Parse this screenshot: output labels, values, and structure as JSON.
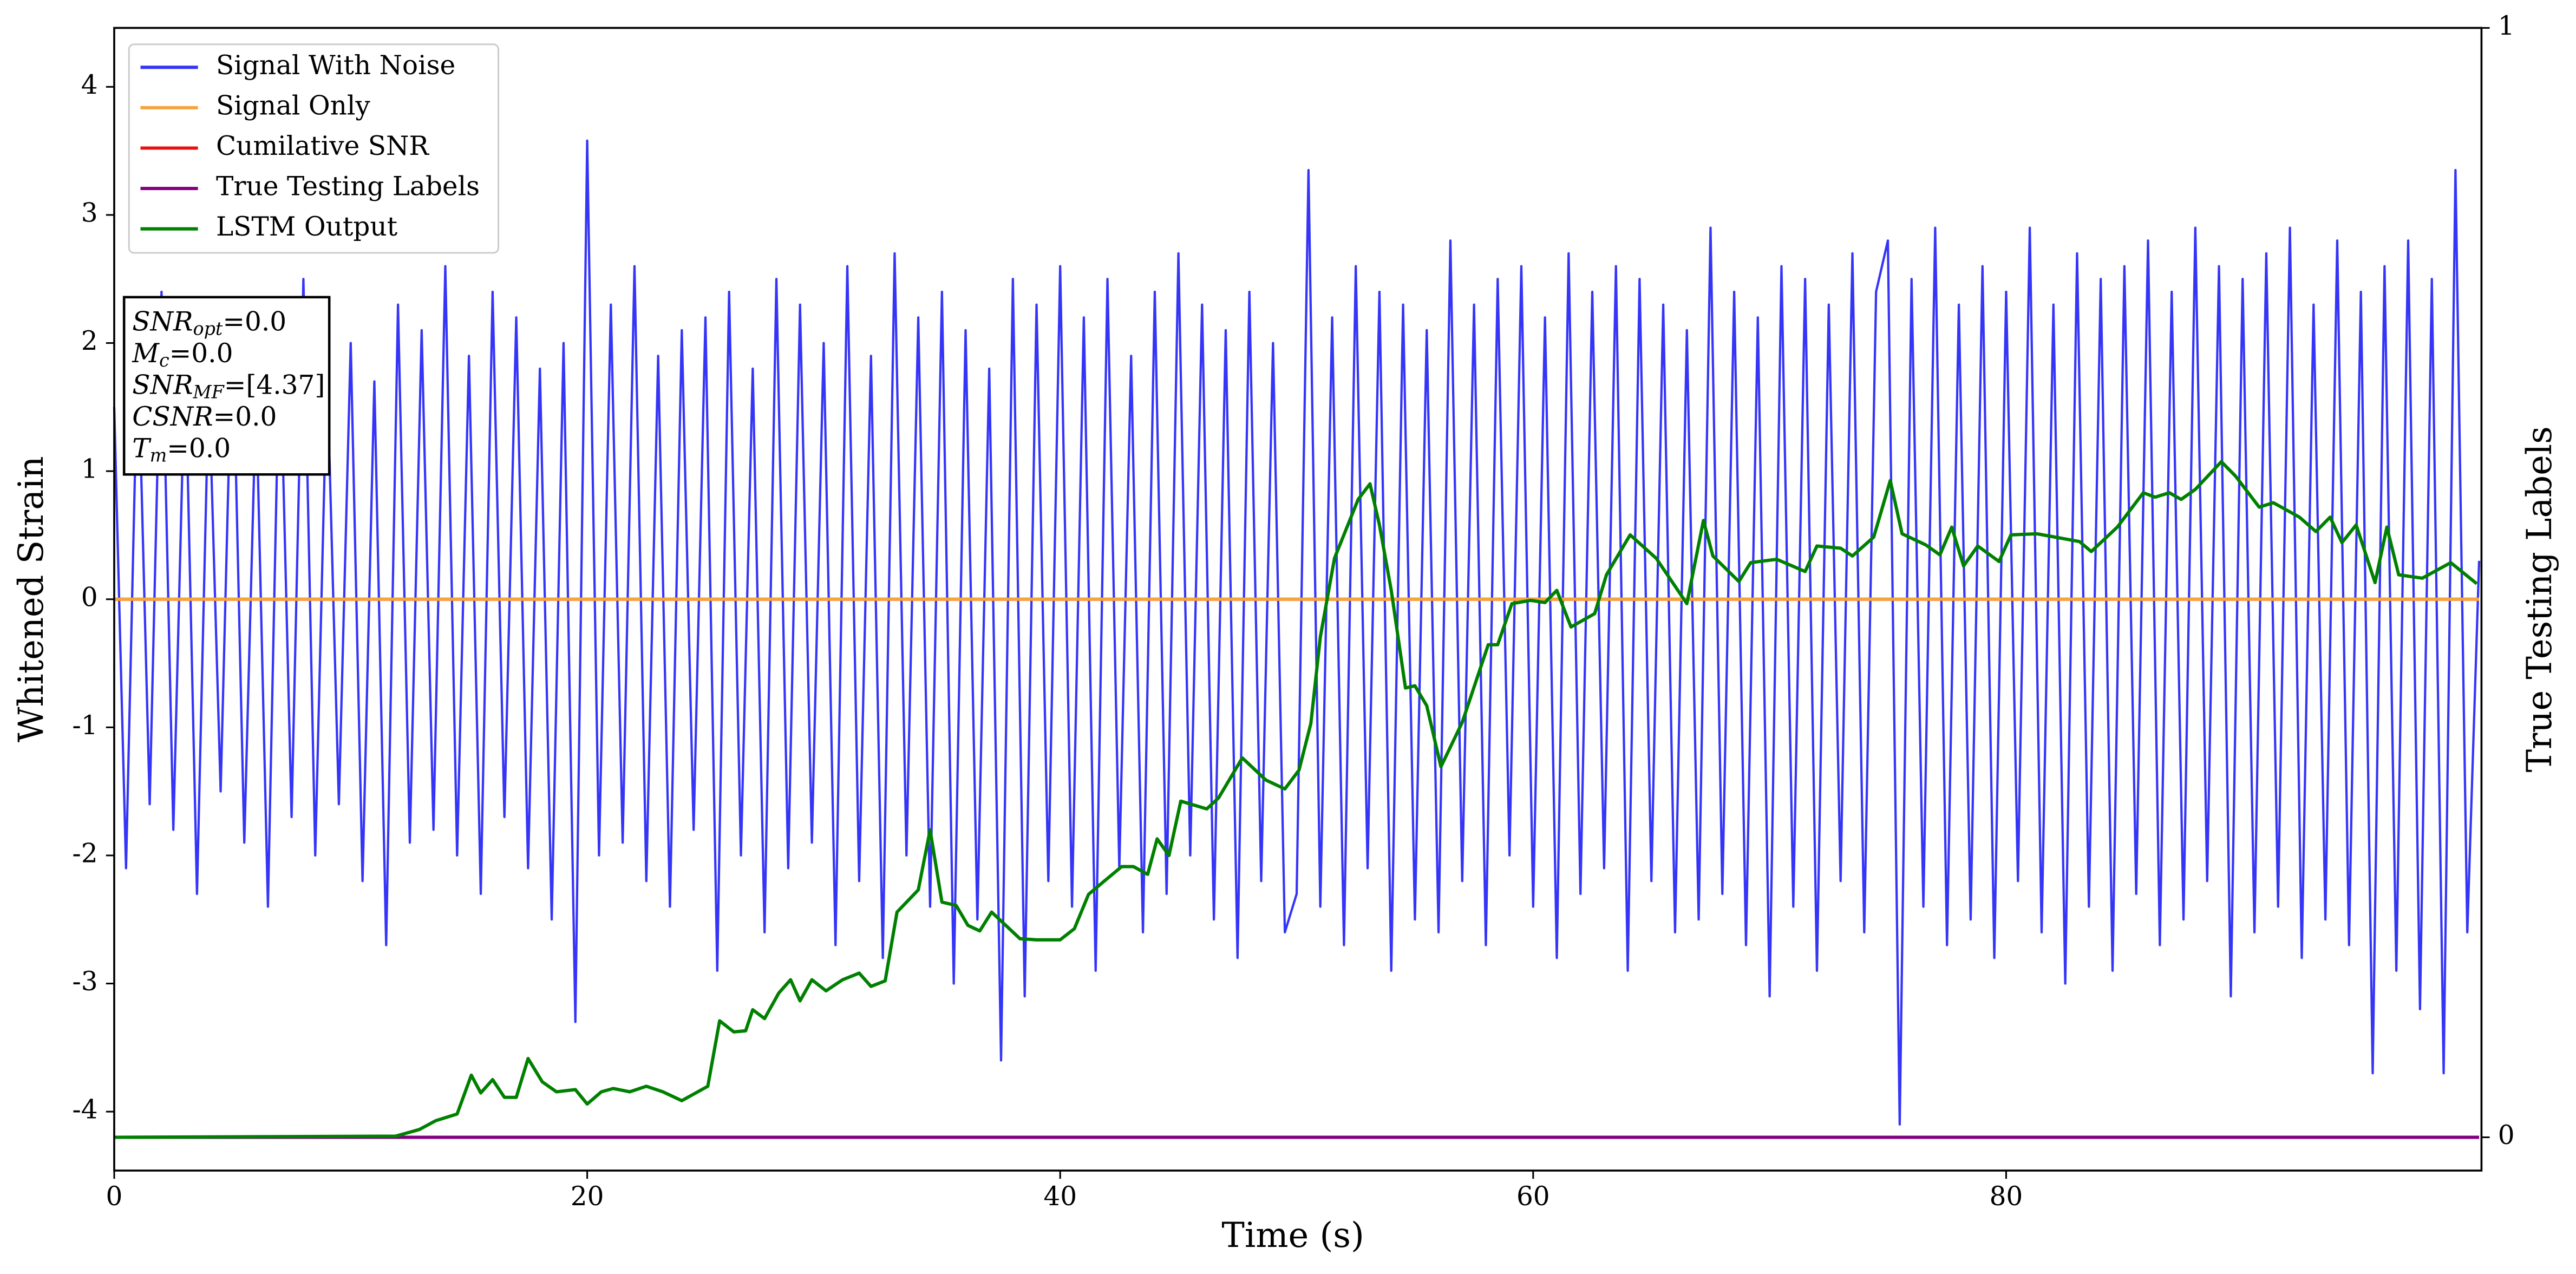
{
  "chart_data": {
    "type": "line",
    "xlabel": "Time (s)",
    "ylabel": "Whitened Strain",
    "y2label": "True Testing Labels",
    "xlim": [
      0,
      100.1
    ],
    "xticks": [
      0,
      20,
      40,
      60,
      80
    ],
    "ylim": [
      -4.46,
      4.46
    ],
    "yticks": [
      -4,
      -3,
      -2,
      -1,
      0,
      1,
      2,
      3,
      4
    ],
    "y2lim": [
      -0.03,
      1.0
    ],
    "y2ticks": [
      0,
      1
    ],
    "legend": "upper left",
    "annotations": [
      {
        "label": "SNR",
        "sub": "opt",
        "text": "=0.0"
      },
      {
        "label": "M",
        "sub": "c",
        "text": "=0.0"
      },
      {
        "label": "SNR",
        "sub": "MF",
        "text": "=[4.37]"
      },
      {
        "label": "CSNR",
        "text": "=0.0"
      },
      {
        "label": "T",
        "sub": "m",
        "text": "=0.0"
      }
    ],
    "series": [
      {
        "name": "Signal With Noise",
        "color": "#3535f8",
        "axis": "y",
        "x": [
          0,
          0.5,
          1,
          1.5,
          2,
          2.5,
          3,
          3.5,
          4,
          4.5,
          5,
          5.5,
          6,
          6.5,
          7,
          7.5,
          8,
          8.5,
          9,
          9.5,
          10,
          10.5,
          11,
          11.5,
          12,
          12.5,
          13,
          13.5,
          14,
          14.5,
          15,
          15.5,
          16,
          16.5,
          17,
          17.5,
          18,
          18.5,
          19,
          19.5,
          20,
          20.5,
          21,
          21.5,
          22,
          22.5,
          23,
          23.5,
          24,
          24.5,
          25,
          25.5,
          26,
          26.5,
          27,
          27.5,
          28,
          28.5,
          29,
          29.5,
          30,
          30.5,
          31,
          31.5,
          32,
          32.5,
          33,
          33.5,
          34,
          34.5,
          35,
          35.5,
          36,
          36.5,
          37,
          37.5,
          38,
          38.5,
          39,
          39.5,
          40,
          40.5,
          41,
          41.5,
          42,
          42.5,
          43,
          43.5,
          44,
          44.5,
          45,
          45.5,
          46,
          46.5,
          47,
          47.5,
          48,
          48.5,
          49,
          49.5,
          50,
          50.5,
          51,
          51.5,
          52,
          52.5,
          53,
          53.5,
          54,
          54.5,
          55,
          55.5,
          56,
          56.5,
          57,
          57.5,
          58,
          58.5,
          59,
          59.5,
          60,
          60.5,
          61,
          61.5,
          62,
          62.5,
          63,
          63.5,
          64,
          64.5,
          65,
          65.5,
          66,
          66.5,
          67,
          67.5,
          68,
          68.5,
          69,
          69.5,
          70,
          70.5,
          71,
          71.5,
          72,
          72.5,
          73,
          73.5,
          74,
          74.5,
          75,
          75.5,
          76,
          76.5,
          77,
          77.5,
          78,
          78.5,
          79,
          79.5,
          80,
          80.5,
          81,
          81.5,
          82,
          82.5,
          83,
          83.5,
          84,
          84.5,
          85,
          85.5,
          86,
          86.5,
          87,
          87.5,
          88,
          88.5,
          89,
          89.5,
          90,
          90.5,
          91,
          91.5,
          92,
          92.5,
          93,
          93.5,
          94,
          94.5,
          95,
          95.5,
          96,
          96.5,
          97,
          97.5,
          98,
          98.5,
          99,
          99.5,
          100
        ],
        "values": [
          1.5,
          -2.1,
          2.0,
          -1.6,
          2.4,
          -1.8,
          1.9,
          -2.3,
          1.7,
          -1.5,
          2.2,
          -1.9,
          1.6,
          -2.4,
          2.1,
          -1.7,
          2.5,
          -2.0,
          1.8,
          -1.6,
          2.0,
          -2.2,
          1.7,
          -2.7,
          2.3,
          -1.9,
          2.1,
          -1.8,
          2.6,
          -2.0,
          1.9,
          -2.3,
          2.4,
          -1.7,
          2.2,
          -2.1,
          1.8,
          -2.5,
          2.0,
          -3.3,
          3.58,
          -2.0,
          2.3,
          -1.9,
          2.6,
          -2.2,
          1.9,
          -2.4,
          2.1,
          -1.8,
          2.2,
          -2.9,
          2.4,
          -2.0,
          1.8,
          -2.6,
          2.5,
          -2.1,
          2.3,
          -1.9,
          2.0,
          -2.7,
          2.6,
          -2.2,
          1.9,
          -2.8,
          2.7,
          -2.0,
          2.2,
          -2.4,
          2.4,
          -3.0,
          2.1,
          -2.5,
          1.8,
          -3.6,
          2.5,
          -3.1,
          2.3,
          -2.2,
          2.6,
          -2.4,
          2.2,
          -2.9,
          2.5,
          -2.1,
          1.9,
          -2.6,
          2.4,
          -2.3,
          2.7,
          -2.0,
          2.3,
          -2.5,
          2.1,
          -2.8,
          2.4,
          -2.2,
          2.0,
          -2.6,
          -2.3,
          3.35,
          -2.4,
          2.2,
          -2.7,
          2.6,
          -2.1,
          2.4,
          -2.9,
          2.3,
          -2.5,
          2.1,
          -2.6,
          2.8,
          -2.2,
          2.3,
          -2.7,
          2.5,
          -2.0,
          2.6,
          -2.4,
          2.2,
          -2.8,
          2.7,
          -2.3,
          2.4,
          -2.1,
          2.6,
          -2.9,
          2.5,
          -2.2,
          2.3,
          -2.6,
          2.1,
          -2.5,
          2.9,
          -2.3,
          2.4,
          -2.7,
          2.2,
          -3.1,
          2.6,
          -2.4,
          2.5,
          -2.9,
          2.3,
          -2.2,
          2.7,
          -2.6,
          2.4,
          2.8,
          -4.1,
          2.5,
          -2.4,
          2.9,
          -2.7,
          2.3,
          -2.5,
          2.6,
          -2.8,
          2.4,
          -2.2,
          2.9,
          -2.6,
          2.3,
          -3.0,
          2.7,
          -2.4,
          2.5,
          -2.9,
          2.6,
          -2.3,
          2.8,
          -2.7,
          2.4,
          -2.5,
          2.9,
          -2.2,
          2.6,
          -3.1,
          2.5,
          -2.6,
          2.7,
          -2.4,
          2.9,
          -2.8,
          2.3,
          -2.5,
          2.8,
          -2.7,
          2.4,
          -3.7,
          2.6,
          -2.9,
          2.8,
          -3.2,
          2.5,
          -3.7,
          3.35,
          -2.6,
          0.3
        ]
      },
      {
        "name": "Signal Only",
        "color": "#f5a540",
        "axis": "y",
        "x": [
          0,
          100
        ],
        "values": [
          0,
          0
        ]
      },
      {
        "name": "Cumilative SNR",
        "color": "#e81010",
        "axis": "y",
        "x": [
          0,
          100
        ],
        "values": [
          0,
          0
        ]
      },
      {
        "name": "True Testing Labels",
        "color": "#800080",
        "axis": "y2",
        "x": [
          0,
          100
        ],
        "values": [
          0,
          0
        ]
      },
      {
        "name": "LSTM Output",
        "color": "#008000",
        "axis": "y2",
        "x": [
          0,
          11.9,
          12.9,
          13.6,
          14.5,
          15.1,
          15.5,
          16.0,
          16.5,
          17.0,
          17.5,
          18.1,
          18.7,
          19.5,
          20.0,
          20.6,
          21.1,
          21.8,
          22.5,
          23.2,
          24.0,
          25.1,
          25.6,
          26.2,
          26.7,
          27.0,
          27.5,
          28.1,
          28.6,
          29.0,
          29.5,
          30.1,
          30.8,
          31.5,
          32.0,
          32.6,
          33.1,
          34.0,
          34.5,
          35.0,
          35.6,
          36.1,
          36.6,
          37.1,
          37.7,
          38.3,
          39.0,
          40.0,
          40.6,
          41.2,
          41.7,
          42.6,
          43.1,
          43.7,
          44.1,
          44.6,
          45.1,
          46.2,
          46.7,
          47.7,
          48.7,
          49.5,
          50.1,
          50.6,
          51.0,
          51.6,
          52.6,
          53.1,
          53.5,
          54.0,
          54.6,
          55.0,
          55.5,
          56.1,
          57.0,
          58.1,
          58.5,
          59.1,
          59.9,
          60.5,
          61.0,
          61.6,
          62.6,
          63.1,
          64.1,
          65.2,
          66.5,
          67.2,
          67.6,
          68.7,
          69.2,
          70.3,
          71.5,
          72.0,
          73.0,
          73.5,
          74.4,
          75.1,
          75.6,
          76.6,
          77.2,
          77.7,
          78.2,
          78.8,
          79.7,
          80.2,
          81.3,
          83.1,
          83.6,
          84.7,
          85.8,
          86.3,
          86.9,
          87.4,
          88.0,
          89.1,
          89.7,
          90.7,
          91.3,
          92.4,
          93.1,
          93.7,
          94.2,
          94.8,
          95.6,
          96.1,
          96.6,
          97.6,
          98.8,
          99.9
        ],
        "values": [
          0,
          0.001,
          0.007,
          0.015,
          0.021,
          0.056,
          0.04,
          0.052,
          0.036,
          0.036,
          0.071,
          0.05,
          0.041,
          0.043,
          0.03,
          0.041,
          0.044,
          0.041,
          0.046,
          0.041,
          0.033,
          0.046,
          0.105,
          0.095,
          0.096,
          0.115,
          0.107,
          0.13,
          0.142,
          0.123,
          0.142,
          0.132,
          0.142,
          0.148,
          0.136,
          0.141,
          0.203,
          0.223,
          0.277,
          0.212,
          0.209,
          0.191,
          0.186,
          0.203,
          0.191,
          0.179,
          0.178,
          0.178,
          0.188,
          0.219,
          0.228,
          0.244,
          0.244,
          0.237,
          0.269,
          0.254,
          0.303,
          0.296,
          0.306,
          0.342,
          0.322,
          0.314,
          0.331,
          0.373,
          0.451,
          0.522,
          0.575,
          0.589,
          0.552,
          0.493,
          0.405,
          0.407,
          0.389,
          0.334,
          0.374,
          0.444,
          0.444,
          0.481,
          0.484,
          0.482,
          0.493,
          0.46,
          0.472,
          0.507,
          0.543,
          0.522,
          0.481,
          0.556,
          0.524,
          0.501,
          0.518,
          0.521,
          0.51,
          0.533,
          0.531,
          0.524,
          0.541,
          0.592,
          0.544,
          0.534,
          0.525,
          0.55,
          0.515,
          0.533,
          0.519,
          0.543,
          0.544,
          0.537,
          0.528,
          0.55,
          0.581,
          0.577,
          0.581,
          0.575,
          0.584,
          0.609,
          0.596,
          0.568,
          0.572,
          0.559,
          0.546,
          0.559,
          0.536,
          0.552,
          0.5,
          0.55,
          0.507,
          0.504,
          0.518,
          0.499
        ]
      }
    ]
  }
}
